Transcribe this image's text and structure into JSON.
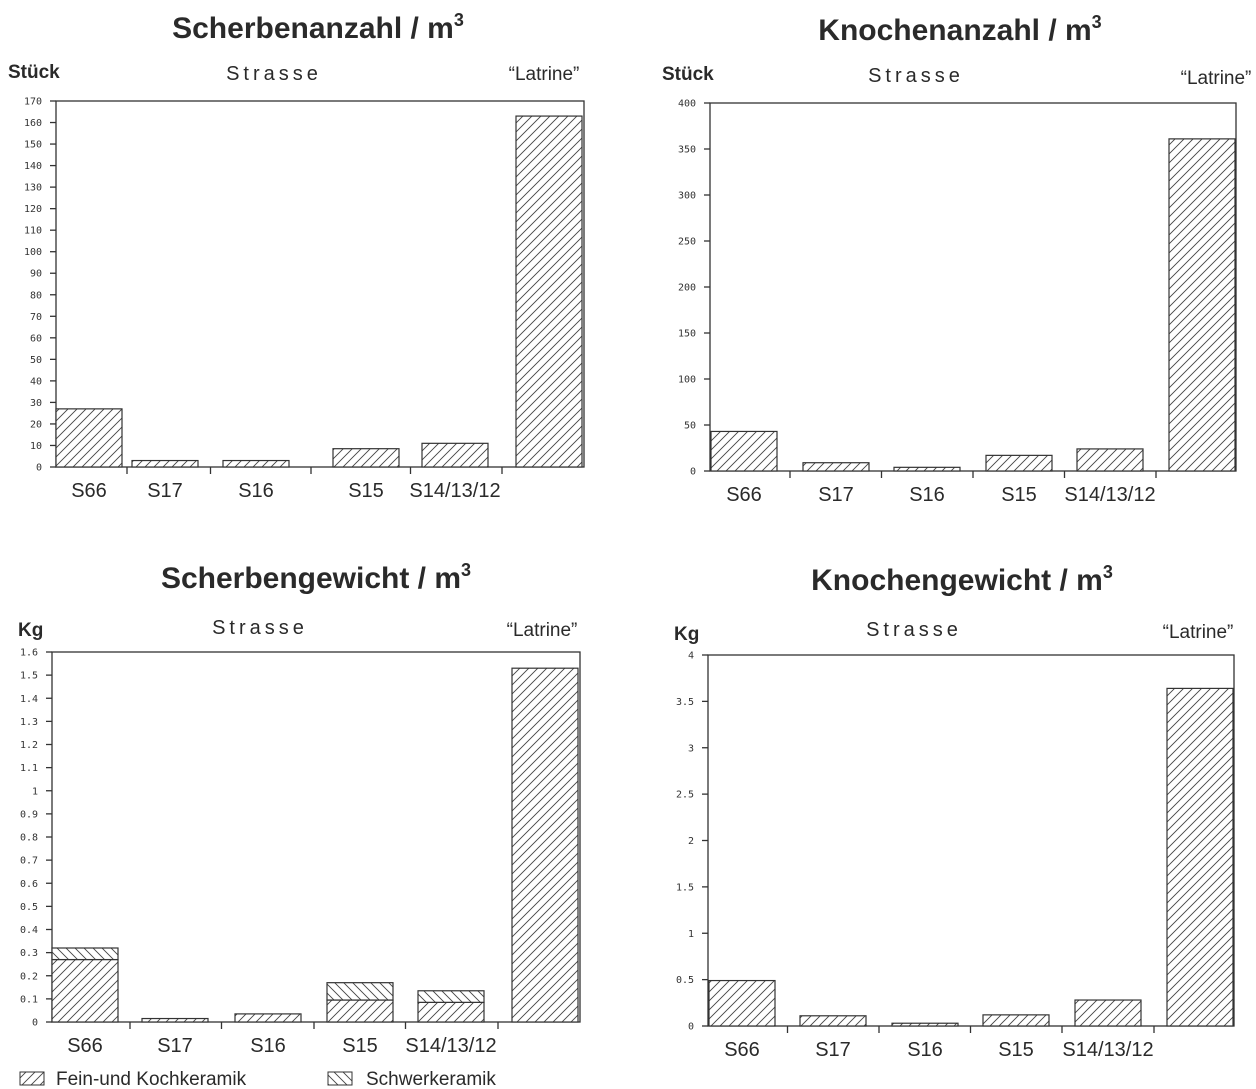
{
  "legend": {
    "fine": "Fein-und Kochkeramik",
    "heavy": "Schwerkeramik"
  },
  "chart_data": [
    {
      "type": "bar",
      "title": "Scherbenanzahl / m",
      "title_sup": "3",
      "ylabel": "Stück",
      "group_label": "Strasse",
      "latrine_label": "“Latrine”",
      "categories": [
        "S66",
        "S17",
        "S16",
        "S15",
        "S14/13/12",
        ""
      ],
      "ylim": [
        0,
        170
      ],
      "yticks": [
        0,
        10,
        20,
        30,
        40,
        50,
        60,
        70,
        80,
        90,
        100,
        110,
        120,
        130,
        140,
        150,
        160,
        170
      ],
      "ytick_labels": [
        "0",
        "10",
        "20",
        "30",
        "40",
        "50",
        "60",
        "70",
        "80",
        "90",
        "100",
        "110",
        "120",
        "130",
        "140",
        "150",
        "160",
        "170"
      ],
      "series": [
        {
          "key": "fine",
          "values": [
            27,
            3,
            3,
            8.5,
            11,
            163
          ]
        }
      ]
    },
    {
      "type": "bar",
      "title": "Knochenanzahl / m",
      "title_sup": "3",
      "ylabel": "Stück",
      "group_label": "Strasse",
      "latrine_label": "“Latrine”",
      "categories": [
        "S66",
        "S17",
        "S16",
        "S15",
        "S14/13/12",
        ""
      ],
      "ylim": [
        0,
        400
      ],
      "yticks": [
        0,
        50,
        100,
        150,
        200,
        250,
        300,
        350,
        400
      ],
      "ytick_labels": [
        "0",
        "50",
        "100",
        "150",
        "200",
        "250",
        "300",
        "350",
        "400"
      ],
      "series": [
        {
          "key": "fine",
          "values": [
            43,
            9,
            4,
            17,
            24,
            361
          ]
        }
      ]
    },
    {
      "type": "bar",
      "title": "Scherbengewicht / m",
      "title_sup": "3",
      "ylabel": "Kg",
      "group_label": "Strasse",
      "latrine_label": "“Latrine”",
      "categories": [
        "S66",
        "S17",
        "S16",
        "S15",
        "S14/13/12",
        ""
      ],
      "ylim": [
        0,
        1.6
      ],
      "yticks": [
        0,
        0.1,
        0.2,
        0.3,
        0.4,
        0.5,
        0.6,
        0.7,
        0.8,
        0.9,
        1,
        1.1,
        1.2,
        1.3,
        1.4,
        1.5,
        1.6
      ],
      "ytick_labels": [
        "0",
        "0.1",
        "0.2",
        "0.3",
        "0.4",
        "0.5",
        "0.6",
        "0.7",
        "0.8",
        "0.9",
        "1",
        "1.1",
        "1.2",
        "1.3",
        "1.4",
        "1.5",
        "1.6"
      ],
      "stacked": true,
      "series": [
        {
          "key": "fine",
          "values": [
            0.27,
            0.015,
            0.035,
            0.095,
            0.085,
            1.53
          ]
        },
        {
          "key": "heavy",
          "values": [
            0.05,
            0,
            0,
            0.075,
            0.05,
            0
          ]
        }
      ]
    },
    {
      "type": "bar",
      "title": "Knochengewicht / m",
      "title_sup": "3",
      "ylabel": "Kg",
      "group_label": "Strasse",
      "latrine_label": "“Latrine”",
      "categories": [
        "S66",
        "S17",
        "S16",
        "S15",
        "S14/13/12",
        ""
      ],
      "ylim": [
        0,
        4
      ],
      "yticks": [
        0,
        0.5,
        1,
        1.5,
        2,
        2.5,
        3,
        3.5,
        4
      ],
      "ytick_labels": [
        "0",
        "0.5",
        "1",
        "1.5",
        "2",
        "2.5",
        "3",
        "3.5",
        "4"
      ],
      "series": [
        {
          "key": "fine",
          "values": [
            0.49,
            0.11,
            0.03,
            0.12,
            0.28,
            3.64
          ]
        }
      ]
    }
  ]
}
